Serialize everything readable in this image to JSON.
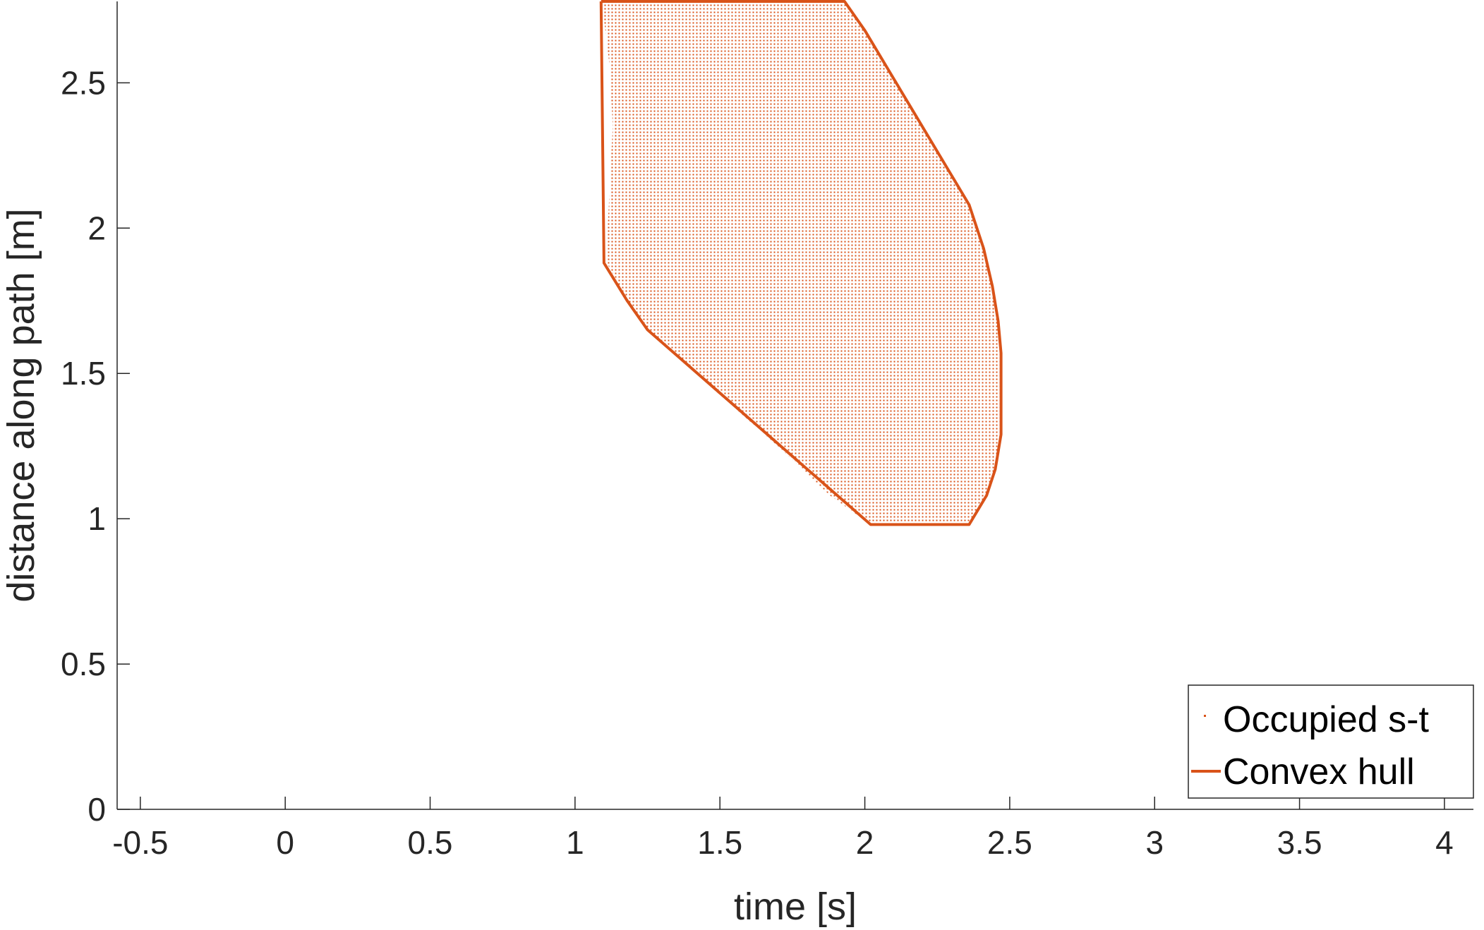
{
  "chart_data": {
    "type": "scatter",
    "xlabel": "time [s]",
    "ylabel": "distance along path [m]",
    "xlim": [
      -0.58,
      4.1
    ],
    "ylim": [
      0,
      2.78
    ],
    "xticks": [
      -0.5,
      0,
      0.5,
      1,
      1.5,
      2,
      2.5,
      3,
      3.5,
      4
    ],
    "xtick_labels": [
      "-0.5",
      "0",
      "0.5",
      "1",
      "1.5",
      "2",
      "2.5",
      "3",
      "3.5",
      "4"
    ],
    "yticks": [
      0,
      0.5,
      1,
      1.5,
      2,
      2.5
    ],
    "ytick_labels": [
      "0",
      "0.5",
      "1",
      "1.5",
      "2",
      "2.5"
    ],
    "grid": false,
    "legend_position": "bottom-right",
    "colors": {
      "series": "#d95319",
      "axis": "#262626",
      "legend_box": "#262626"
    },
    "series": [
      {
        "name": "Occupied s-t",
        "style": "dense-points",
        "region": {
          "left": [
            [
              1.1,
              2.78
            ],
            [
              1.1,
              2.72
            ],
            [
              1.12,
              2.55
            ],
            [
              1.13,
              2.35
            ],
            [
              1.12,
              2.15
            ],
            [
              1.11,
              1.95
            ],
            [
              1.11,
              1.88
            ]
          ],
          "right": [
            [
              1.93,
              2.78
            ],
            [
              2.0,
              2.68
            ],
            [
              2.15,
              2.43
            ],
            [
              2.3,
              2.18
            ],
            [
              2.36,
              2.08
            ],
            [
              2.41,
              1.93
            ],
            [
              2.44,
              1.8
            ],
            [
              2.46,
              1.68
            ],
            [
              2.47,
              1.57
            ],
            [
              2.47,
              1.29
            ],
            [
              2.45,
              1.17
            ],
            [
              2.42,
              1.08
            ],
            [
              2.36,
              0.98
            ]
          ],
          "bottom_left": [
            [
              1.11,
              1.88
            ],
            [
              1.18,
              1.75
            ],
            [
              1.25,
              1.65
            ],
            [
              1.45,
              1.47
            ],
            [
              1.7,
              1.25
            ],
            [
              1.88,
              1.08
            ],
            [
              2.02,
              0.98
            ]
          ]
        }
      },
      {
        "name": "Convex hull",
        "style": "line",
        "points": [
          [
            1.09,
            2.78
          ],
          [
            1.93,
            2.78
          ],
          [
            2.0,
            2.68
          ],
          [
            2.15,
            2.43
          ],
          [
            2.3,
            2.18
          ],
          [
            2.36,
            2.08
          ],
          [
            2.41,
            1.93
          ],
          [
            2.44,
            1.8
          ],
          [
            2.46,
            1.68
          ],
          [
            2.47,
            1.57
          ],
          [
            2.47,
            1.29
          ],
          [
            2.45,
            1.17
          ],
          [
            2.42,
            1.08
          ],
          [
            2.36,
            0.98
          ],
          [
            2.02,
            0.98
          ],
          [
            1.25,
            1.65
          ],
          [
            1.18,
            1.75
          ],
          [
            1.1,
            1.88
          ],
          [
            1.09,
            2.78
          ]
        ]
      }
    ]
  }
}
